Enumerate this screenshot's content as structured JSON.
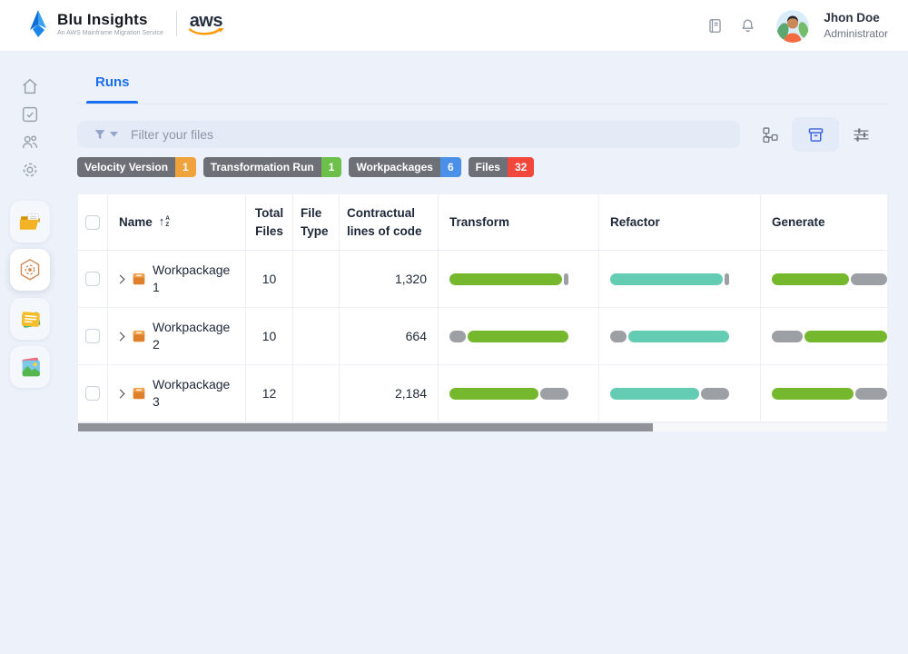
{
  "colors": {
    "green": "#76b82d",
    "teal": "#63ccb2",
    "gray": "#9c9fa3",
    "orange": "#f0a23c",
    "chip_green": "#6cc04a",
    "chip_blue": "#4a90e8",
    "chip_red": "#f2483c",
    "chip_label_bg": "#6d7177",
    "accent_blue": "#1a6ef0"
  },
  "header": {
    "product_title": "Blu Insights",
    "product_subtitle": "An AWS Mainframe Migration Service",
    "aws_logo_text": "aws",
    "user": {
      "name": "Jhon Doe",
      "role": "Administrator"
    }
  },
  "tabs": [
    {
      "label": "Runs",
      "active": true
    }
  ],
  "filter_bar": {
    "placeholder": "Filter your files"
  },
  "view_toggles": [
    {
      "name": "tree-view",
      "active": false
    },
    {
      "name": "archive-box-view",
      "active": true
    },
    {
      "name": "filter-settings",
      "active": false
    }
  ],
  "chips": [
    {
      "label": "Velocity Version",
      "value": "1"
    },
    {
      "label": "Transformation Run",
      "value": "1"
    },
    {
      "label": "Workpackages",
      "value": "6"
    },
    {
      "label": "Files",
      "value": "32"
    }
  ],
  "table": {
    "sort_icon": {
      "top": "A",
      "bottom": "Z"
    },
    "columns": {
      "name": "Name",
      "total_files": "Total Files",
      "file_type": "File Type",
      "contractual": "Contractual lines of code",
      "transform": "Transform",
      "refactor": "Refactor",
      "generate": "Generate"
    },
    "rows": [
      {
        "name": "Workpackage 1",
        "total_files": "10",
        "file_type": "",
        "contractual": "1,320",
        "transform": [
          {
            "color": "green",
            "pct": 96
          },
          {
            "color": "gray",
            "pct": 4
          }
        ],
        "refactor": [
          {
            "color": "teal",
            "pct": 96
          },
          {
            "color": "gray",
            "pct": 4
          }
        ],
        "generate": [
          {
            "color": "green",
            "pct": 68
          },
          {
            "color": "gray",
            "pct": 32
          }
        ]
      },
      {
        "name": "Workpackage 2",
        "total_files": "10",
        "file_type": "",
        "contractual": "664",
        "transform": [
          {
            "color": "gray",
            "pct": 14
          },
          {
            "color": "green",
            "pct": 86
          }
        ],
        "refactor": [
          {
            "color": "gray",
            "pct": 14
          },
          {
            "color": "teal",
            "pct": 86
          }
        ],
        "generate": [
          {
            "color": "gray",
            "pct": 27
          },
          {
            "color": "green",
            "pct": 73
          }
        ]
      },
      {
        "name": "Workpackage 3",
        "total_files": "12",
        "file_type": "",
        "contractual": "2,184",
        "transform": [
          {
            "color": "green",
            "pct": 76
          },
          {
            "color": "gray",
            "pct": 24
          }
        ],
        "refactor": [
          {
            "color": "teal",
            "pct": 76
          },
          {
            "color": "gray",
            "pct": 24
          }
        ],
        "generate": [
          {
            "color": "green",
            "pct": 72
          },
          {
            "color": "gray",
            "pct": 28
          }
        ]
      }
    ]
  },
  "scrollbar": {
    "thumb_pct": 71
  }
}
